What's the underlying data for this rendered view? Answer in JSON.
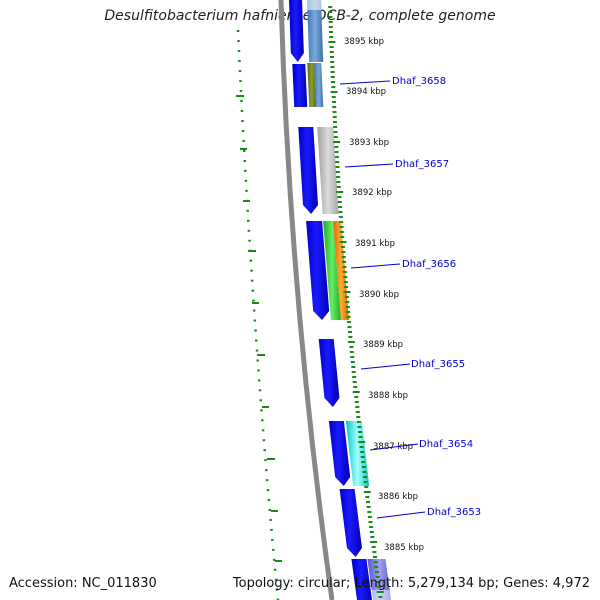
{
  "title": "Desulfitobacterium hafniense DCB-2, complete genome",
  "accession": "Accession: NC_011830",
  "summary": "Topology: circular; Length: 5,279,134 bp; Genes: 4,972",
  "kbp_labels": [
    "3895 kbp",
    "3894 kbp",
    "3893 kbp",
    "3892 kbp",
    "3891 kbp",
    "3890 kbp",
    "3889 kbp",
    "3888 kbp",
    "3887 kbp",
    "3886 kbp",
    "3885 kbp"
  ],
  "genes": [
    "Dhaf_3658",
    "Dhaf_3657",
    "Dhaf_3656",
    "Dhaf_3655",
    "Dhaf_3654",
    "Dhaf_3653"
  ],
  "colors": {
    "backbone": "#888888",
    "cds": "#0000ee",
    "gc_skew": "#1a8a1a",
    "label_line": "#0000cc",
    "blue_feature": "#5b8fc8",
    "olive_feature": "#7a8a2a",
    "gray_feature": "#b8b8b8",
    "green_feature": "#44cc44",
    "orange_feature": "#ff8800",
    "cyan_feature": "#00e8e8",
    "violet_feature": "#7070d8"
  }
}
